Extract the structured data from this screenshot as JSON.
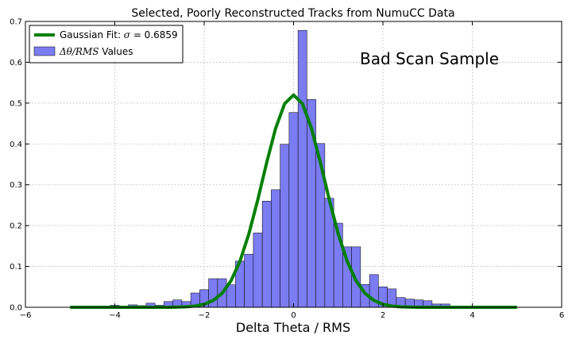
{
  "chart_data": {
    "type": "bar",
    "title": "Selected, Poorly Reconstructed Tracks from NumuCC Data",
    "xlabel": "Delta Theta / RMS",
    "ylabel": "",
    "xlim": [
      -6,
      6
    ],
    "ylim": [
      0,
      0.7
    ],
    "xticks": [
      -6,
      -4,
      -2,
      0,
      2,
      4,
      6
    ],
    "yticks": [
      0.0,
      0.1,
      0.2,
      0.3,
      0.4,
      0.5,
      0.6,
      0.7
    ],
    "xtick_labels": [
      "−6",
      "−4",
      "−2",
      "0",
      "2",
      "4",
      "6"
    ],
    "ytick_labels": [
      "0.0",
      "0.1",
      "0.2",
      "0.3",
      "0.4",
      "0.5",
      "0.6",
      "0.7"
    ],
    "grid": true,
    "legend_position": "top-left",
    "annotation": "Bad Scan Sample",
    "colors": {
      "histogram": "#7b7bf2",
      "fit": "#008000"
    },
    "histogram": {
      "name": "Δθ/RMS Values",
      "name_math": "Δθ/RMS",
      "name_suffix": " Values",
      "bin_width": 0.2,
      "bins": [
        [
          -4.8,
          0.002
        ],
        [
          -4.6,
          0.002
        ],
        [
          -4.4,
          0.002
        ],
        [
          -4.2,
          0.003
        ],
        [
          -4.0,
          0.005
        ],
        [
          -3.8,
          0.002
        ],
        [
          -3.6,
          0.006
        ],
        [
          -3.4,
          0.004
        ],
        [
          -3.2,
          0.01
        ],
        [
          -3.0,
          0.005
        ],
        [
          -2.8,
          0.014
        ],
        [
          -2.6,
          0.018
        ],
        [
          -2.4,
          0.014
        ],
        [
          -2.2,
          0.035
        ],
        [
          -2.0,
          0.043
        ],
        [
          -1.8,
          0.07
        ],
        [
          -1.6,
          0.07
        ],
        [
          -1.4,
          0.055
        ],
        [
          -1.2,
          0.113
        ],
        [
          -1.0,
          0.13
        ],
        [
          -0.8,
          0.182
        ],
        [
          -0.6,
          0.26
        ],
        [
          -0.4,
          0.288
        ],
        [
          -0.2,
          0.399
        ],
        [
          0.0,
          0.477
        ],
        [
          0.2,
          0.678
        ],
        [
          0.4,
          0.509
        ],
        [
          0.6,
          0.401
        ],
        [
          0.8,
          0.267
        ],
        [
          1.0,
          0.206
        ],
        [
          1.2,
          0.148
        ],
        [
          1.4,
          0.148
        ],
        [
          1.6,
          0.056
        ],
        [
          1.8,
          0.08
        ],
        [
          2.0,
          0.05
        ],
        [
          2.2,
          0.045
        ],
        [
          2.4,
          0.024
        ],
        [
          2.6,
          0.02
        ],
        [
          2.8,
          0.018
        ],
        [
          3.0,
          0.016
        ],
        [
          3.2,
          0.008
        ],
        [
          3.4,
          0.008
        ],
        [
          3.6,
          0.003
        ],
        [
          3.8,
          0.002
        ],
        [
          4.0,
          0.002
        ],
        [
          4.2,
          0.003
        ],
        [
          4.4,
          0.002
        ],
        [
          4.6,
          0.002
        ],
        [
          4.8,
          0.002
        ]
      ]
    },
    "fit": {
      "name": "Gaussian Fit: σ = 0.6859",
      "name_prefix": "Gaussian Fit: ",
      "name_math": "σ",
      "name_value": " = 0.6859",
      "sigma": 0.6859,
      "mean": 0.0,
      "peak": 0.52,
      "x_range": [
        -5.0,
        5.0
      ]
    }
  }
}
